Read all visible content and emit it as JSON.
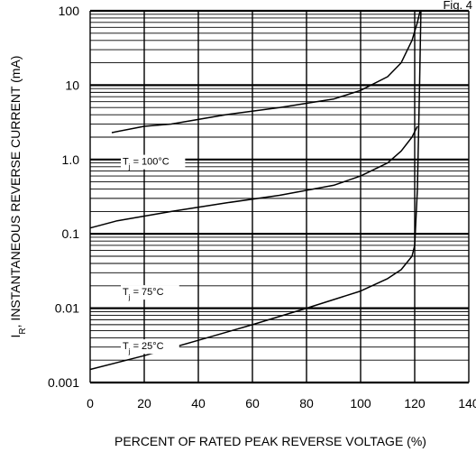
{
  "figure_label": "Fig. 4",
  "chart_data": {
    "type": "line",
    "title": "",
    "xlabel": "PERCENT OF RATED PEAK REVERSE VOLTAGE (%)",
    "ylabel_main": "I",
    "ylabel_sub": "R",
    "ylabel_rest": ", INSTANTANEOUS REVERSE CURRENT (mA)",
    "x_scale": "linear",
    "y_scale": "log",
    "xlim": [
      0,
      140
    ],
    "ylim": [
      0.001,
      100
    ],
    "x_ticks": [
      0,
      20,
      40,
      60,
      80,
      100,
      120,
      140
    ],
    "x_tick_labels": [
      "0",
      "20",
      "40",
      "60",
      "80",
      "100",
      "120",
      "140"
    ],
    "y_ticks": [
      0.001,
      0.01,
      0.1,
      1,
      10,
      100
    ],
    "y_tick_labels": [
      "0.001",
      "0.01",
      "0.1",
      "1.0",
      "10",
      "100"
    ],
    "grid": true,
    "series": [
      {
        "name": "T<sub>j</sub> = 100°C",
        "label_main": "T",
        "label_sub": "j",
        "label_rest": " = 100°C",
        "label_at": [
          12,
          0.85
        ],
        "x": [
          8,
          20,
          30,
          50,
          70,
          90,
          100,
          110,
          115,
          119,
          121,
          122
        ],
        "y": [
          2.3,
          2.8,
          3.0,
          4.0,
          5.0,
          6.5,
          8.5,
          13,
          20,
          40,
          70,
          100
        ]
      },
      {
        "name": "T<sub>j</sub> = 75°C",
        "label_main": "T",
        "label_sub": "j",
        "label_rest": " = 75°C",
        "label_at": [
          12,
          0.015
        ],
        "x": [
          0,
          10,
          30,
          50,
          70,
          90,
          100,
          110,
          115,
          119,
          121
        ],
        "y": [
          0.12,
          0.15,
          0.2,
          0.26,
          0.33,
          0.45,
          0.6,
          0.9,
          1.3,
          2.0,
          2.8
        ]
      },
      {
        "name": "T<sub>j</sub> = 25°C",
        "label_main": "T",
        "label_sub": "j",
        "label_rest": " = 25°C",
        "label_at": [
          12,
          0.0028
        ],
        "x": [
          0,
          20,
          40,
          60,
          80,
          100,
          110,
          115,
          119,
          120,
          121,
          121.8,
          122.3
        ],
        "y": [
          0.0015,
          0.0023,
          0.0037,
          0.006,
          0.01,
          0.017,
          0.025,
          0.033,
          0.05,
          0.07,
          0.4,
          10,
          100
        ]
      }
    ]
  }
}
